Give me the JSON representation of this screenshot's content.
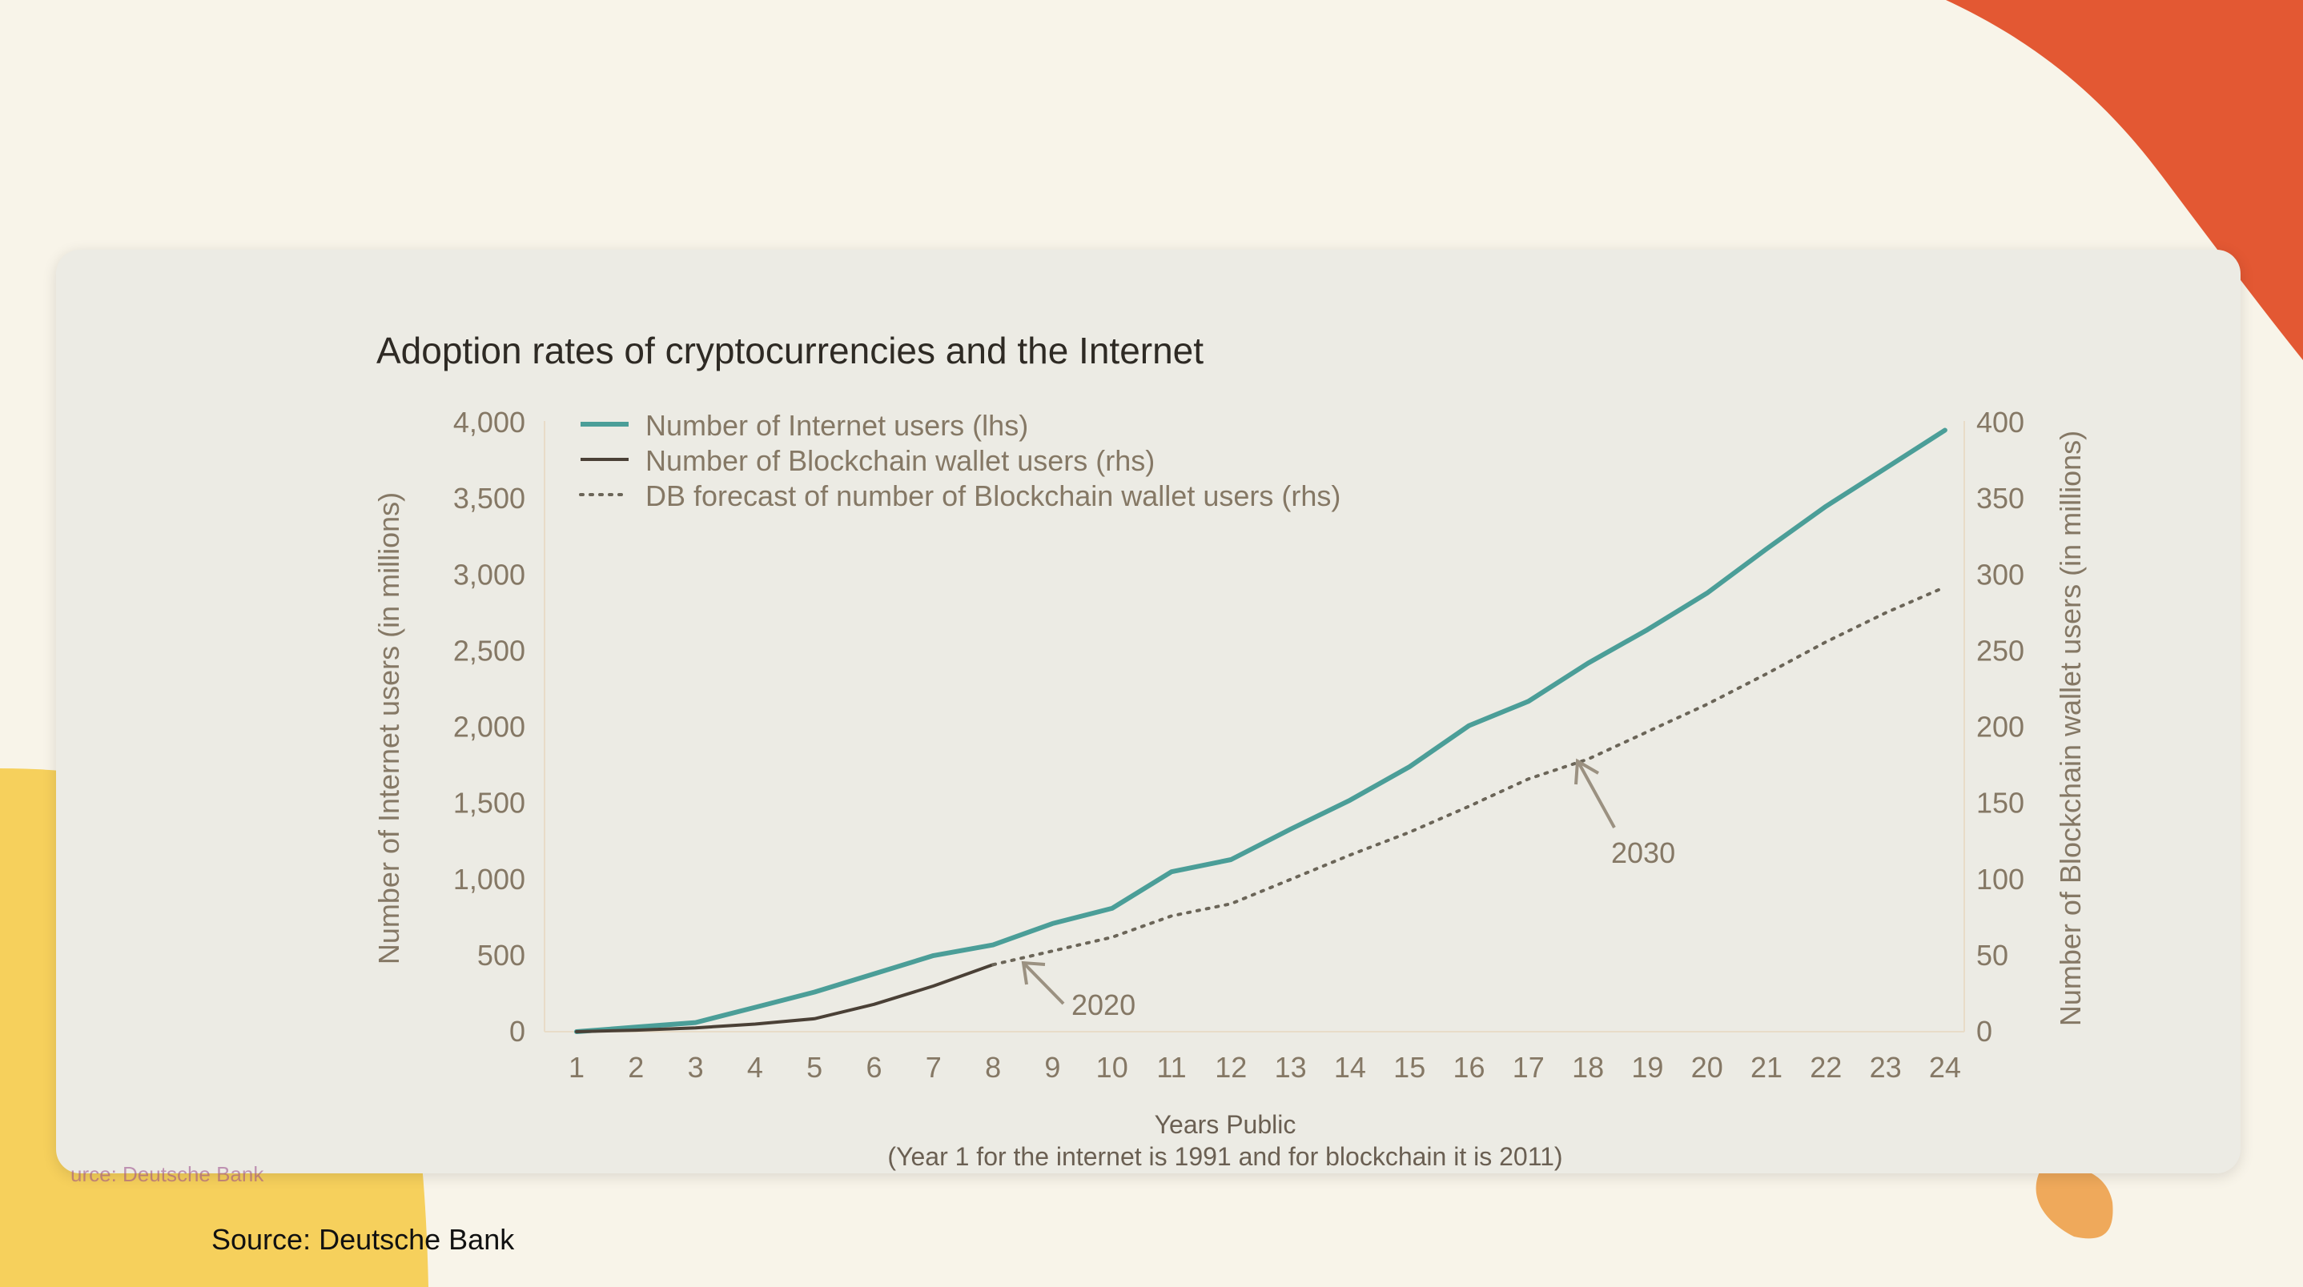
{
  "colors": {
    "background": "#f8f4e9",
    "accent_orange": "#e35833",
    "accent_yellow": "#f6d05c",
    "accent_peach": "#efa95b",
    "card": "#ecebe4",
    "internet_series": "#4b9e98",
    "blockchain_series": "#4a4036",
    "forecast_series": "#6b6558"
  },
  "source": "Source: Deutsche Bank",
  "source_ghost": "urce: Deutsche Bank",
  "chart_data": {
    "type": "line",
    "title": "Adoption rates of cryptocurrencies and the Internet",
    "xlabel": "Years Public",
    "xlabel_note": "(Year 1 for the internet is 1991 and for blockchain it is 2011)",
    "ylabel_left": "Number of Internet users (in millions)",
    "ylabel_right": "Number of Blockchain wallet users (in millions)",
    "x": [
      1,
      2,
      3,
      4,
      5,
      6,
      7,
      8,
      9,
      10,
      11,
      12,
      13,
      14,
      15,
      16,
      17,
      18,
      19,
      20,
      21,
      22,
      23,
      24
    ],
    "ylim_left": [
      0,
      4000
    ],
    "ylim_right": [
      0,
      400
    ],
    "yticks_left": [
      "0",
      "500",
      "1,000",
      "1,500",
      "2,000",
      "2,500",
      "3,000",
      "3,500",
      "4,000"
    ],
    "yticks_right": [
      "0",
      "50",
      "100",
      "150",
      "200",
      "250",
      "300",
      "350",
      "400"
    ],
    "legend_position": "top-left",
    "series": [
      {
        "name": "Number of Internet users (lhs)",
        "axis": "left",
        "style": "solid",
        "x": [
          1,
          2,
          3,
          4,
          5,
          6,
          7,
          8,
          9,
          10,
          11,
          12,
          13,
          14,
          15,
          16,
          17,
          18,
          19,
          20,
          21,
          22,
          23,
          24
        ],
        "values": [
          0,
          30,
          60,
          160,
          260,
          380,
          500,
          570,
          710,
          810,
          1050,
          1130,
          1330,
          1520,
          1740,
          2010,
          2170,
          2420,
          2640,
          2880,
          3170,
          3450,
          3700,
          3950
        ]
      },
      {
        "name": "Number of Blockchain wallet users (rhs)",
        "axis": "right",
        "style": "solid",
        "x": [
          1,
          2,
          3,
          4,
          5,
          6,
          7,
          8
        ],
        "values": [
          0,
          1,
          2.5,
          5,
          8.5,
          18,
          30,
          44
        ]
      },
      {
        "name": "DB forecast of number of Blockchain wallet users (rhs)",
        "axis": "right",
        "style": "dotted",
        "x": [
          8,
          9,
          10,
          11,
          12,
          13,
          14,
          15,
          16,
          17,
          18,
          19,
          20,
          21,
          22,
          23,
          24
        ],
        "values": [
          44,
          53,
          62,
          76,
          84,
          100,
          116,
          131,
          148,
          166,
          179,
          197,
          215,
          235,
          256,
          275,
          292
        ]
      }
    ],
    "annotations": [
      {
        "text": "2020",
        "x": 8.5
      },
      {
        "text": "2030",
        "x": 18
      }
    ]
  }
}
